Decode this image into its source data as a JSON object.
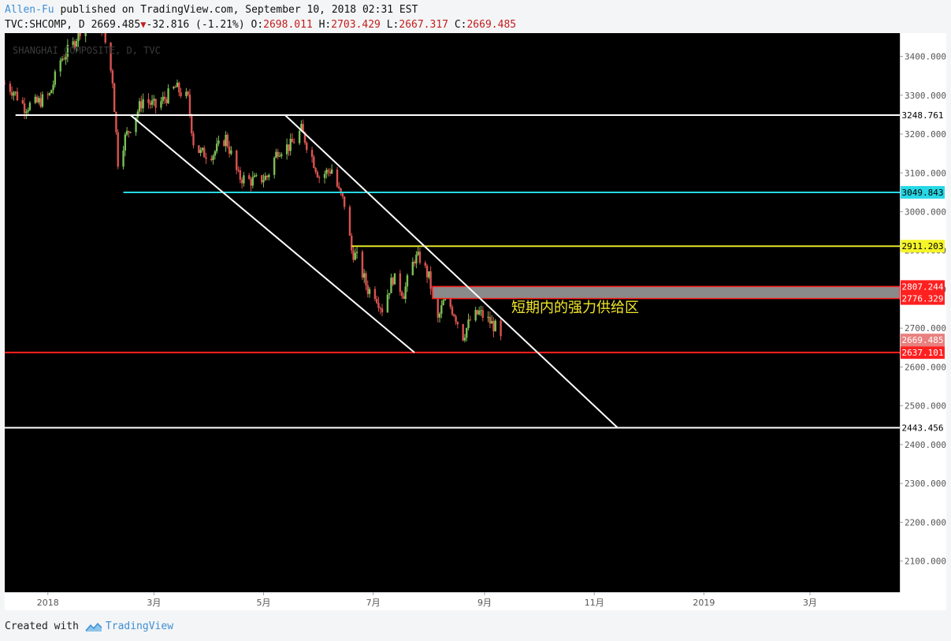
{
  "header": {
    "author": "Allen-Fu",
    "published_text": " published on TradingView.com, September 10, 2018 02:31 EST",
    "symbol": "TVC:SHCOMP, D",
    "last": "2669.485",
    "change": "-32.816 (-1.21%)",
    "open_label": "O:",
    "open": "2698.011",
    "high_label": "H:",
    "high": "2703.429",
    "low_label": "L:",
    "low": "2667.317",
    "close_label": "C:",
    "close": "2669.485"
  },
  "footer": {
    "created_with": "Created with",
    "brand": "TradingView"
  },
  "colors": {
    "background": "#000000",
    "up_candle": "#7bbf55",
    "down_candle": "#d9534f",
    "cyan": "#27d8e6",
    "yellow": "#e6e62a",
    "red_line": "#ff2020",
    "white": "#ffffff",
    "zone_fill": "#8a8a8a"
  },
  "chart_data": {
    "type": "candlestick",
    "title": "SHANGHAI COMPOSITE, D, TVC",
    "y_ticks": [
      "3400.000",
      "3300.000",
      "3200.000",
      "3100.000",
      "3000.000",
      "2900.000",
      "2800.000",
      "2700.000",
      "2600.000",
      "2500.000",
      "2400.000",
      "2300.000",
      "2200.000",
      "2100.000"
    ],
    "y_tick_values": [
      3400,
      3300,
      3200,
      3100,
      3000,
      2900,
      2800,
      2700,
      2600,
      2500,
      2400,
      2300,
      2200,
      2100
    ],
    "ylim": [
      2020,
      3460
    ],
    "x_ticks": [
      "2018",
      "3月",
      "5月",
      "7月",
      "9月",
      "11月",
      "2019",
      "3月"
    ],
    "x_tick_dates": [
      "2018-01-01",
      "2018-03-01",
      "2018-05-01",
      "2018-07-01",
      "2018-09-01",
      "2018-11-01",
      "2019-01-01",
      "2019-03-01"
    ],
    "xlim": [
      "2017-12-08",
      "2019-04-20"
    ],
    "horizontal_lines": [
      {
        "value": 3248.761,
        "label": "3248.761",
        "start": "2017-12-14",
        "color": "white",
        "label_bg": "#ffffff",
        "label_fg": "#000000"
      },
      {
        "value": 3049.843,
        "label": "3049.843",
        "start": "2018-02-12",
        "color": "cyan",
        "label_bg": "#27d8e6",
        "label_fg": "#000000"
      },
      {
        "value": 2911.203,
        "label": "2911.203",
        "start": "2018-06-19",
        "color": "yellow",
        "label_bg": "#f5f52a",
        "label_fg": "#000000"
      },
      {
        "value": 2637.101,
        "label": "2637.101",
        "start": "2017-12-08",
        "color": "red_line",
        "label_bg": "#ff2020",
        "label_fg": "#ffffff"
      },
      {
        "value": 2443.456,
        "label": "2443.456",
        "start": "2017-12-08",
        "color": "white",
        "label_bg": "#ffffff",
        "label_fg": "#000000"
      }
    ],
    "zone": {
      "top": 2807.244,
      "bottom": 2776.329,
      "start": "2018-08-03",
      "top_label": "2807.244",
      "bottom_label": "2776.329"
    },
    "zone_annotation": "短期内的强力供给区",
    "last_price": {
      "value": 2669.485,
      "label": "2669.485"
    },
    "trendlines": [
      {
        "x1": "2018-02-16",
        "y1": 3248.761,
        "x2": "2018-07-24",
        "y2": 2637.101
      },
      {
        "x1": "2018-05-13",
        "y1": 3248.761,
        "x2": "2018-11-14",
        "y2": 2443.456
      }
    ],
    "path": [
      [
        "2017-12-08",
        3330
      ],
      [
        "2017-12-13",
        3310
      ],
      [
        "2017-12-19",
        3270
      ],
      [
        "2017-12-26",
        3280
      ],
      [
        "2018-01-02",
        3300
      ],
      [
        "2018-01-08",
        3390
      ],
      [
        "2018-01-15",
        3430
      ],
      [
        "2018-01-22",
        3500
      ],
      [
        "2018-01-26",
        3560
      ],
      [
        "2018-02-01",
        3460
      ],
      [
        "2018-02-06",
        3340
      ],
      [
        "2018-02-09",
        3130
      ],
      [
        "2018-02-13",
        3190
      ],
      [
        "2018-02-23",
        3290
      ],
      [
        "2018-03-02",
        3270
      ],
      [
        "2018-03-09",
        3300
      ],
      [
        "2018-03-13",
        3320
      ],
      [
        "2018-03-20",
        3290
      ],
      [
        "2018-03-23",
        3180
      ],
      [
        "2018-03-27",
        3150
      ],
      [
        "2018-04-03",
        3150
      ],
      [
        "2018-04-10",
        3190
      ],
      [
        "2018-04-17",
        3090
      ],
      [
        "2018-04-23",
        3080
      ],
      [
        "2018-04-27",
        3080
      ],
      [
        "2018-05-03",
        3090
      ],
      [
        "2018-05-09",
        3160
      ],
      [
        "2018-05-16",
        3170
      ],
      [
        "2018-05-22",
        3210
      ],
      [
        "2018-05-28",
        3140
      ],
      [
        "2018-06-01",
        3090
      ],
      [
        "2018-06-08",
        3110
      ],
      [
        "2018-06-12",
        3050
      ],
      [
        "2018-06-15",
        3020
      ],
      [
        "2018-06-19",
        2900
      ],
      [
        "2018-06-22",
        2880
      ],
      [
        "2018-06-28",
        2800
      ],
      [
        "2018-07-02",
        2790
      ],
      [
        "2018-07-06",
        2750
      ],
      [
        "2018-07-12",
        2830
      ],
      [
        "2018-07-18",
        2790
      ],
      [
        "2018-07-24",
        2880
      ],
      [
        "2018-07-27",
        2880
      ],
      [
        "2018-08-01",
        2830
      ],
      [
        "2018-08-06",
        2720
      ],
      [
        "2018-08-10",
        2780
      ],
      [
        "2018-08-15",
        2740
      ],
      [
        "2018-08-20",
        2680
      ],
      [
        "2018-08-24",
        2720
      ],
      [
        "2018-08-29",
        2740
      ],
      [
        "2018-09-03",
        2720
      ],
      [
        "2018-09-07",
        2702
      ],
      [
        "2018-09-10",
        2669
      ]
    ]
  }
}
